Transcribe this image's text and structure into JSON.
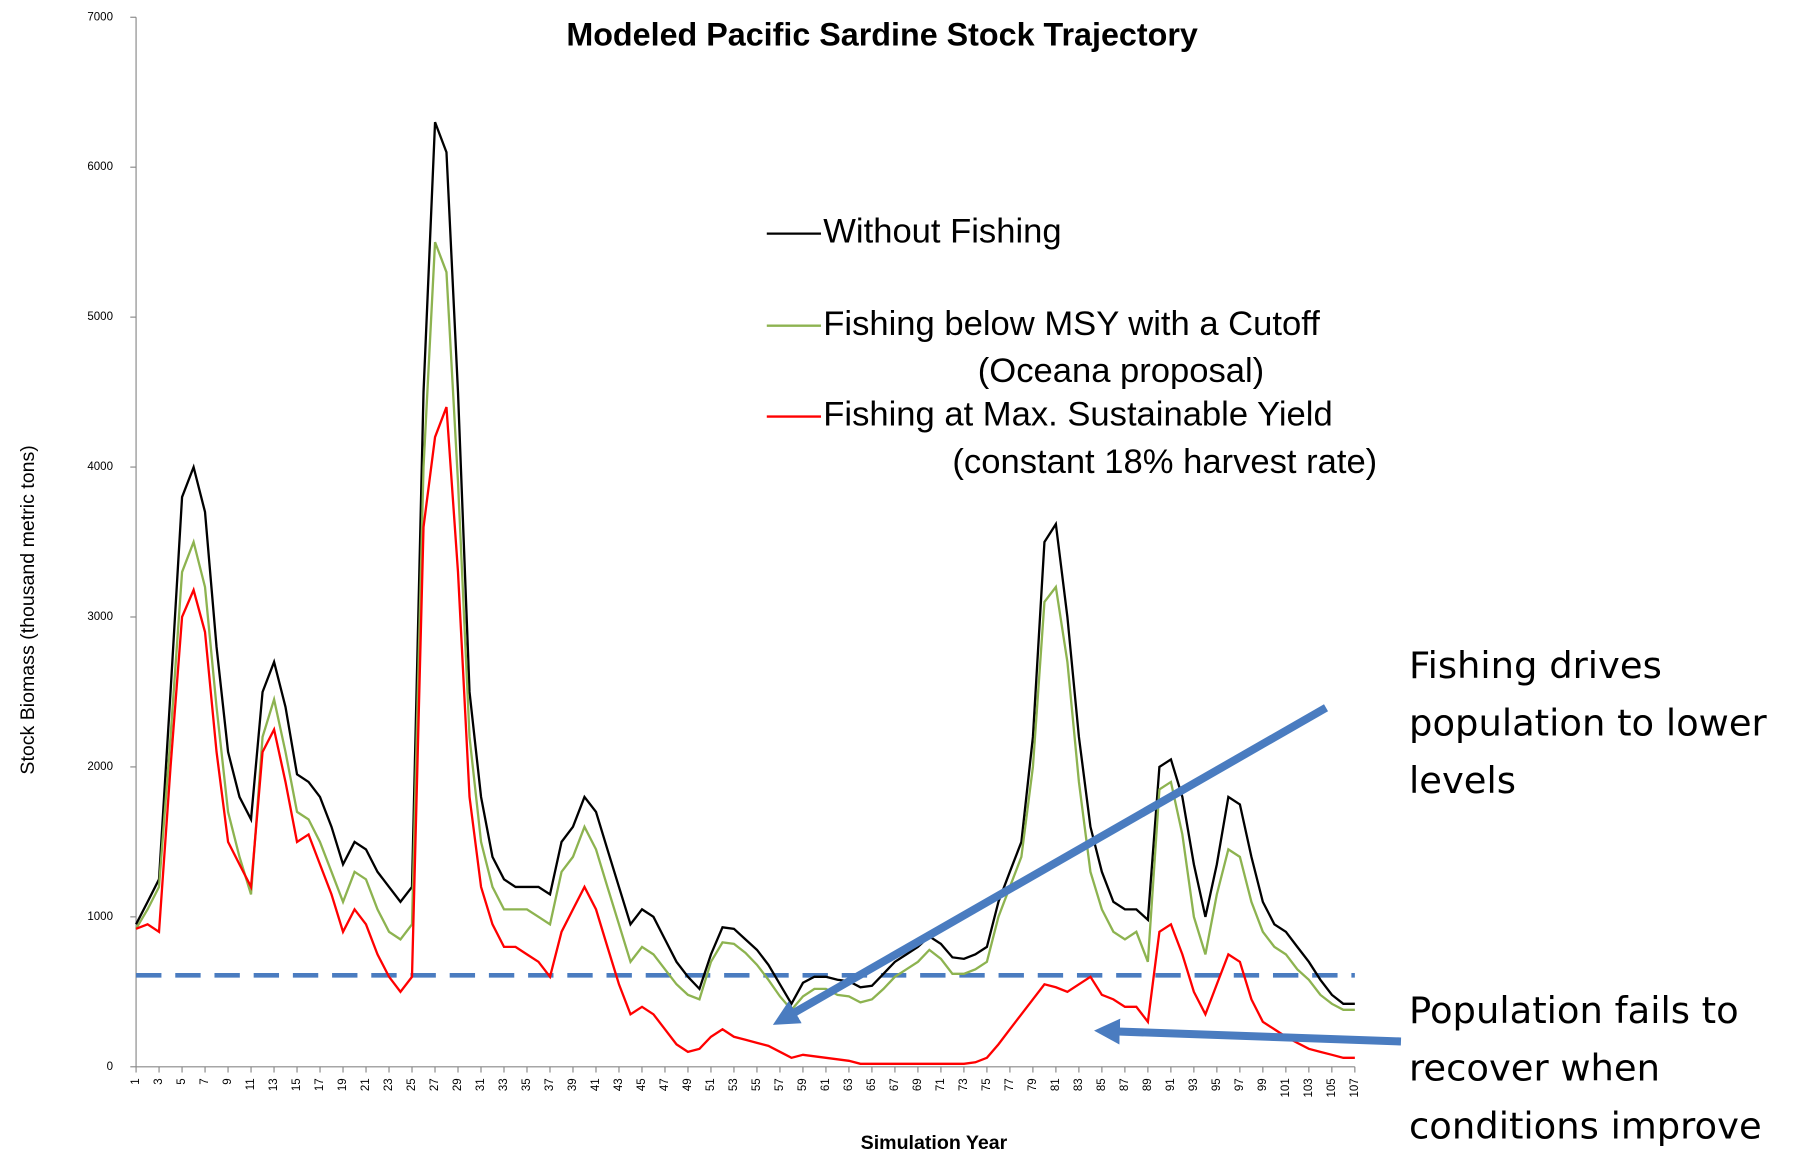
{
  "chart_data": {
    "type": "line",
    "title": "Modeled  Pacific Sardine Stock Trajectory",
    "x_label": "Simulation  Year",
    "y_label": "Stock Biomass (thousand metric tons)",
    "x": [
      1,
      2,
      3,
      4,
      5,
      6,
      7,
      8,
      9,
      10,
      11,
      12,
      13,
      14,
      15,
      16,
      17,
      18,
      19,
      20,
      21,
      22,
      23,
      24,
      25,
      26,
      27,
      28,
      29,
      30,
      31,
      32,
      33,
      34,
      35,
      36,
      37,
      38,
      39,
      40,
      41,
      42,
      43,
      44,
      45,
      46,
      47,
      48,
      49,
      50,
      51,
      52,
      53,
      54,
      55,
      56,
      57,
      58,
      59,
      60,
      61,
      62,
      63,
      64,
      65,
      66,
      67,
      68,
      69,
      70,
      71,
      72,
      73,
      74,
      75,
      76,
      77,
      78,
      79,
      80,
      81,
      82,
      83,
      84,
      85,
      86,
      87,
      88,
      89,
      90,
      91,
      92,
      93,
      94,
      95,
      96,
      97,
      98,
      99,
      100,
      101,
      102,
      103,
      104,
      105,
      106,
      107
    ],
    "xlim": [
      1,
      107
    ],
    "xticks": [
      1,
      3,
      5,
      7,
      9,
      11,
      13,
      15,
      17,
      19,
      21,
      23,
      25,
      27,
      29,
      31,
      33,
      35,
      37,
      39,
      41,
      43,
      45,
      47,
      49,
      51,
      53,
      55,
      57,
      59,
      61,
      63,
      65,
      67,
      69,
      71,
      73,
      75,
      77,
      79,
      81,
      83,
      85,
      87,
      89,
      91,
      93,
      95,
      97,
      99,
      101,
      103,
      105,
      107
    ],
    "ylim": [
      0,
      7000
    ],
    "yticks": [
      0,
      1000,
      2000,
      3000,
      4000,
      5000,
      6000,
      7000
    ],
    "reference_line": {
      "value": 610,
      "color": "#4a7cc0"
    },
    "series": [
      {
        "name": "Without Fishing",
        "color": "#000000",
        "values": [
          950,
          1100,
          1250,
          2500,
          3800,
          4000,
          3700,
          2800,
          2100,
          1800,
          1650,
          2500,
          2700,
          2400,
          1950,
          1900,
          1800,
          1600,
          1350,
          1500,
          1450,
          1300,
          1200,
          1100,
          1200,
          4500,
          6300,
          6100,
          4500,
          2500,
          1800,
          1400,
          1250,
          1200,
          1200,
          1200,
          1150,
          1500,
          1600,
          1800,
          1700,
          1450,
          1200,
          950,
          1050,
          1000,
          850,
          700,
          600,
          520,
          750,
          930,
          920,
          850,
          780,
          680,
          550,
          420,
          560,
          600,
          600,
          580,
          570,
          530,
          540,
          620,
          700,
          750,
          800,
          870,
          820,
          730,
          720,
          750,
          800,
          1100,
          1300,
          1500,
          2200,
          3500,
          3620,
          3000,
          2200,
          1600,
          1300,
          1100,
          1050,
          1050,
          980,
          2000,
          2050,
          1800,
          1350,
          1000,
          1350,
          1800,
          1750,
          1400,
          1100,
          950,
          900,
          800,
          700,
          580,
          480,
          420,
          420
        ]
      },
      {
        "name": "Fishing below MSY with a Cutoff",
        "note": "(Oceana proposal)",
        "color": "#8db350",
        "values": [
          920,
          1050,
          1200,
          2200,
          3300,
          3500,
          3200,
          2400,
          1700,
          1400,
          1150,
          2200,
          2450,
          2100,
          1700,
          1650,
          1500,
          1300,
          1100,
          1300,
          1250,
          1050,
          900,
          850,
          950,
          4000,
          5500,
          5300,
          3900,
          2200,
          1500,
          1200,
          1050,
          1050,
          1050,
          1000,
          950,
          1300,
          1400,
          1600,
          1450,
          1200,
          950,
          700,
          800,
          750,
          650,
          550,
          480,
          450,
          700,
          830,
          820,
          760,
          680,
          580,
          470,
          380,
          470,
          520,
          520,
          480,
          470,
          430,
          450,
          520,
          600,
          650,
          700,
          780,
          720,
          620,
          620,
          650,
          700,
          1000,
          1200,
          1400,
          2000,
          3100,
          3200,
          2700,
          1900,
          1300,
          1050,
          900,
          850,
          900,
          700,
          1850,
          1900,
          1550,
          1000,
          750,
          1150,
          1450,
          1400,
          1100,
          900,
          800,
          750,
          650,
          580,
          480,
          420,
          380,
          380
        ]
      },
      {
        "name": "Fishing at Max. Sustainable Yield",
        "note": "(constant 18% harvest rate)",
        "color": "#ff0000",
        "values": [
          920,
          950,
          900,
          2000,
          3000,
          3180,
          2900,
          2100,
          1500,
          1350,
          1200,
          2100,
          2250,
          1900,
          1500,
          1550,
          1350,
          1150,
          900,
          1050,
          950,
          750,
          600,
          500,
          600,
          3600,
          4200,
          4400,
          3300,
          1800,
          1200,
          950,
          800,
          800,
          750,
          700,
          600,
          900,
          1050,
          1200,
          1050,
          800,
          550,
          350,
          400,
          350,
          250,
          150,
          100,
          120,
          200,
          250,
          200,
          180,
          160,
          140,
          100,
          60,
          80,
          70,
          60,
          50,
          40,
          20,
          20,
          20,
          20,
          20,
          20,
          20,
          20,
          20,
          20,
          30,
          60,
          150,
          250,
          350,
          450,
          550,
          530,
          500,
          550,
          600,
          480,
          450,
          400,
          400,
          300,
          900,
          950,
          750,
          500,
          350,
          550,
          750,
          700,
          450,
          300,
          250,
          200,
          160,
          120,
          100,
          80,
          60,
          60
        ]
      }
    ],
    "annotations": [
      {
        "lines": [
          "Fishing drives",
          "population to lower",
          "levels"
        ]
      },
      {
        "lines": [
          "Population fails to",
          "recover when",
          "conditions improve"
        ]
      }
    ]
  }
}
